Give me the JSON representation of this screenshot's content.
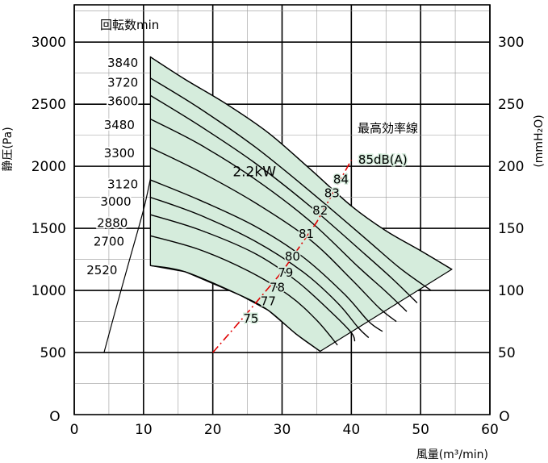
{
  "chart_data": {
    "type": "line",
    "xlabel": "風量(m³/min)",
    "ylabel": "静圧(Pa)",
    "ylabel_right": "(mmH₂O)",
    "xlim": [
      0,
      60
    ],
    "ylim": [
      0,
      3300
    ],
    "x_ticks": [
      "0",
      "10",
      "20",
      "30",
      "40",
      "50",
      "60"
    ],
    "y_ticks": [
      "500",
      "1000",
      "1500",
      "2000",
      "2500",
      "3000"
    ],
    "y_tick_values": [
      500,
      1000,
      1500,
      2000,
      2500,
      3000
    ],
    "y_right_ticks": [
      "50",
      "100",
      "150",
      "200",
      "250",
      "300"
    ],
    "origin_left": "O",
    "origin_right": "O",
    "grid": true,
    "speed_header": "回転数min",
    "power_label": "2.2kW",
    "efficiency_line_label": "最高効率線",
    "region": {
      "top_boundary": [
        [
          11,
          2880
        ],
        [
          16,
          2700
        ],
        [
          22,
          2500
        ],
        [
          28,
          2270
        ],
        [
          34,
          1980
        ],
        [
          40,
          1680
        ],
        [
          45,
          1480
        ],
        [
          50,
          1320
        ],
        [
          54.5,
          1170
        ]
      ],
      "bottom_boundary": [
        [
          11,
          1200
        ],
        [
          16,
          1150
        ],
        [
          24,
          960
        ],
        [
          28,
          840
        ],
        [
          32,
          650
        ],
        [
          35.5,
          510
        ]
      ],
      "right_edge": [
        [
          54.5,
          1170
        ],
        [
          35.5,
          510
        ]
      ],
      "fill": "#d5ecdc"
    },
    "series": [
      {
        "name": "3840",
        "values": [
          [
            11,
            2880
          ],
          [
            16,
            2700
          ],
          [
            22,
            2500
          ],
          [
            28,
            2270
          ],
          [
            34,
            1980
          ],
          [
            40,
            1680
          ],
          [
            45,
            1480
          ],
          [
            50,
            1320
          ],
          [
            54.5,
            1170
          ]
        ]
      },
      {
        "name": "3720",
        "values": [
          [
            11,
            2710
          ],
          [
            18,
            2470
          ],
          [
            26,
            2160
          ],
          [
            34,
            1800
          ],
          [
            42,
            1420
          ],
          [
            47,
            1180
          ],
          [
            51.5,
            1000
          ]
        ]
      },
      {
        "name": "3600",
        "values": [
          [
            11,
            2570
          ],
          [
            18,
            2330
          ],
          [
            26,
            2030
          ],
          [
            34,
            1680
          ],
          [
            42,
            1290
          ],
          [
            46,
            1090
          ],
          [
            49.5,
            900
          ]
        ]
      },
      {
        "name": "3480",
        "values": [
          [
            11,
            2380
          ],
          [
            18,
            2180
          ],
          [
            26,
            1900
          ],
          [
            34,
            1560
          ],
          [
            41,
            1190
          ],
          [
            45,
            990
          ],
          [
            48,
            830
          ]
        ]
      },
      {
        "name": "3300",
        "values": [
          [
            11,
            2150
          ],
          [
            18,
            1960
          ],
          [
            26,
            1710
          ],
          [
            34,
            1410
          ],
          [
            40,
            1090
          ],
          [
            44,
            860
          ],
          [
            46.5,
            750
          ]
        ]
      },
      {
        "name": "3120",
        "values": [
          [
            11,
            1890
          ],
          [
            18,
            1730
          ],
          [
            26,
            1520
          ],
          [
            33,
            1270
          ],
          [
            39,
            970
          ],
          [
            42.5,
            750
          ],
          [
            44.5,
            670
          ]
        ]
      },
      {
        "name": "3000",
        "values": [
          [
            11,
            1750
          ],
          [
            18,
            1610
          ],
          [
            26,
            1400
          ],
          [
            33,
            1150
          ],
          [
            38,
            900
          ],
          [
            41,
            700
          ],
          [
            42.5,
            620
          ]
        ]
      },
      {
        "name": "2880",
        "values": [
          [
            11,
            1610
          ],
          [
            18,
            1490
          ],
          [
            26,
            1300
          ],
          [
            32,
            1080
          ],
          [
            37,
            830
          ],
          [
            40,
            660
          ],
          [
            40.5,
            590
          ]
        ]
      },
      {
        "name": "2700",
        "values": [
          [
            11,
            1440
          ],
          [
            18,
            1330
          ],
          [
            25,
            1160
          ],
          [
            31,
            960
          ],
          [
            35,
            760
          ],
          [
            38,
            560
          ]
        ]
      },
      {
        "name": "2520",
        "values": [
          [
            11,
            1200
          ],
          [
            16,
            1150
          ],
          [
            24,
            960
          ],
          [
            28,
            840
          ],
          [
            32,
            650
          ],
          [
            35.5,
            510
          ]
        ]
      }
    ],
    "speed_labels": [
      {
        "text": "3840",
        "x": 7,
        "y": 2840
      },
      {
        "text": "3720",
        "x": 7,
        "y": 2680
      },
      {
        "text": "3600",
        "x": 7,
        "y": 2530
      },
      {
        "text": "3480",
        "x": 6.5,
        "y": 2340
      },
      {
        "text": "3300",
        "x": 6.5,
        "y": 2110
      },
      {
        "text": "3120",
        "x": 7,
        "y": 1860
      },
      {
        "text": "3000",
        "x": 6,
        "y": 1720
      },
      {
        "text": "2880",
        "x": 5.5,
        "y": 1550
      },
      {
        "text": "2700",
        "x": 5,
        "y": 1400
      },
      {
        "text": "2520",
        "x": 4,
        "y": 1170
      }
    ],
    "left_boundary": [
      [
        4.3,
        500
      ],
      [
        6,
        850
      ],
      [
        8,
        1250
      ],
      [
        10,
        1650
      ],
      [
        11,
        1900
      ]
    ],
    "efficiency_line": [
      [
        20,
        500
      ],
      [
        25,
        820
      ],
      [
        30,
        1150
      ],
      [
        35,
        1550
      ],
      [
        40,
        2050
      ]
    ],
    "db_labels": [
      {
        "text": "75",
        "x": 25.5,
        "y": 780
      },
      {
        "text": "77",
        "x": 28,
        "y": 920
      },
      {
        "text": "78",
        "x": 29.3,
        "y": 1030
      },
      {
        "text": "79",
        "x": 30.5,
        "y": 1150
      },
      {
        "text": "80",
        "x": 31.5,
        "y": 1280
      },
      {
        "text": "81",
        "x": 33.5,
        "y": 1460
      },
      {
        "text": "82",
        "x": 35.5,
        "y": 1650
      },
      {
        "text": "83",
        "x": 37.2,
        "y": 1790
      },
      {
        "text": "84",
        "x": 38.5,
        "y": 1900
      },
      {
        "text": "85dB(A)",
        "x": 41,
        "y": 2060
      }
    ],
    "colors": {
      "region": "#d5ecdc",
      "curve": "#000000",
      "efficiency": "#e00000",
      "grid": "#999999"
    }
  }
}
